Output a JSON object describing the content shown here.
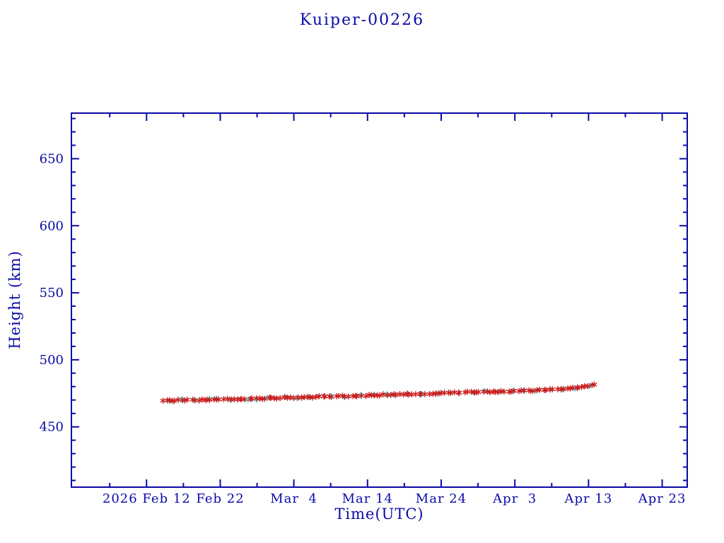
{
  "page": {
    "background": "#ffffff"
  },
  "colors": {
    "axis": "#0a0aa8",
    "red_series": "#cc1c1c",
    "cyan_series": "#4fd8d8"
  },
  "chart_data": {
    "type": "scatter",
    "title": "Kuiper-00226",
    "xlabel": "Time(UTC)",
    "ylabel": "Height (km)",
    "grid": false,
    "legend": "none",
    "x_axis": {
      "unit": "days since 2026 Feb 12",
      "range_days": [
        -10.2,
        73.4
      ],
      "major_ticks": [
        {
          "day": 0,
          "label": "2026 Feb 12"
        },
        {
          "day": 10,
          "label": "Feb 22"
        },
        {
          "day": 20,
          "label": "Mar  4"
        },
        {
          "day": 30,
          "label": "Mar 14"
        },
        {
          "day": 40,
          "label": "Mar 24"
        },
        {
          "day": 50,
          "label": "Apr  3"
        },
        {
          "day": 60,
          "label": "Apr 13"
        },
        {
          "day": 70,
          "label": "Apr 23"
        }
      ],
      "minor_tick_days": [
        -5,
        5,
        15,
        25,
        35,
        45,
        55,
        65
      ]
    },
    "y_axis": {
      "unit": "km",
      "range_km": [
        405,
        684
      ],
      "major_ticks": [
        450,
        500,
        550,
        600,
        650
      ],
      "minor_step_km": 10
    },
    "series": [
      {
        "name": "height-secondary-cyan",
        "color_key": "cyan_series",
        "marker": "asterisk",
        "stroke_width": 1.7,
        "start_day": 3.0,
        "end_day": 60.5,
        "points_per_day": 0.58,
        "jitter_km": 0.7,
        "jitter_day": 0.45,
        "seed": 7,
        "trend_points_day_km": [
          [
            2.2,
            469.5
          ],
          [
            5,
            469.8
          ],
          [
            10,
            470.4
          ],
          [
            15,
            471.1
          ],
          [
            20,
            471.9
          ],
          [
            25,
            472.6
          ],
          [
            30,
            473.4
          ],
          [
            35,
            474.3
          ],
          [
            40,
            475.2
          ],
          [
            45,
            476.0
          ],
          [
            50,
            476.7
          ],
          [
            55,
            477.8
          ],
          [
            58,
            479.0
          ],
          [
            60,
            480.6
          ],
          [
            61,
            481.9
          ]
        ]
      },
      {
        "name": "height-primary-red",
        "color_key": "red_series",
        "marker": "asterisk",
        "stroke_width": 1.4,
        "start_day": 2.2,
        "end_day": 61.0,
        "points_per_day": 2.3,
        "jitter_km": 0.45,
        "jitter_day": 0.22,
        "seed": 42,
        "trend_points_day_km": [
          [
            2.2,
            469.5
          ],
          [
            5,
            469.8
          ],
          [
            10,
            470.4
          ],
          [
            15,
            471.1
          ],
          [
            20,
            471.9
          ],
          [
            25,
            472.6
          ],
          [
            30,
            473.4
          ],
          [
            35,
            474.3
          ],
          [
            40,
            475.2
          ],
          [
            45,
            476.0
          ],
          [
            50,
            476.7
          ],
          [
            55,
            477.8
          ],
          [
            58,
            479.0
          ],
          [
            60,
            480.6
          ],
          [
            61,
            481.9
          ]
        ]
      }
    ]
  }
}
